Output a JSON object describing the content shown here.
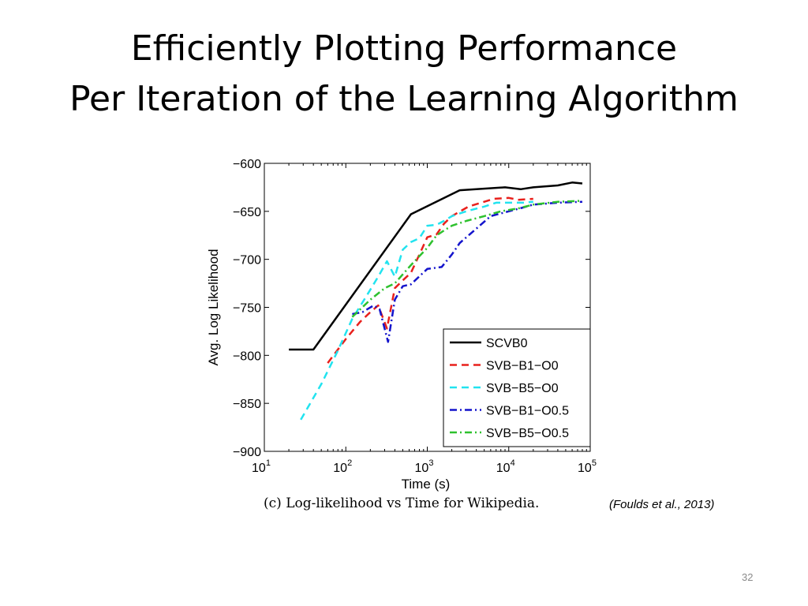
{
  "slide": {
    "title_line1": "Efficiently Plotting Performance",
    "title_line2": "Per Iteration of the Learning Algorithm",
    "caption": "(c) Log-likelihood vs Time for Wikipedia.",
    "citation": "(Foulds et al., 2013)",
    "slide_number": "32"
  },
  "chart_data": {
    "type": "line",
    "title": "",
    "xlabel": "Time (s)",
    "ylabel": "Avg. Log Likelihood",
    "xscale": "log",
    "xlim": [
      10,
      100000
    ],
    "ylim": [
      -900,
      -600
    ],
    "x_ticks": [
      {
        "base": "10",
        "exp": "1"
      },
      {
        "base": "10",
        "exp": "2"
      },
      {
        "base": "10",
        "exp": "3"
      },
      {
        "base": "10",
        "exp": "4"
      },
      {
        "base": "10",
        "exp": "5"
      }
    ],
    "y_ticks": [
      "−600",
      "−650",
      "−700",
      "−750",
      "−800",
      "−850",
      "−900"
    ],
    "grid": false,
    "legend_position": "bottom-right",
    "series": [
      {
        "name": "SCVB0",
        "color": "#000000",
        "dash": "solid",
        "points": [
          [
            20,
            -794
          ],
          [
            40,
            -794
          ],
          [
            630,
            -653
          ],
          [
            2500,
            -628
          ],
          [
            9000,
            -625
          ],
          [
            14000,
            -627
          ],
          [
            20000,
            -625
          ],
          [
            40000,
            -623
          ],
          [
            60000,
            -620
          ],
          [
            80000,
            -621
          ]
        ]
      },
      {
        "name": "SVB−B1−O0",
        "color": "#e8201c",
        "dash": "dashed",
        "points": [
          [
            60,
            -808
          ],
          [
            100,
            -783
          ],
          [
            150,
            -765
          ],
          [
            200,
            -755
          ],
          [
            250,
            -748
          ],
          [
            320,
            -772
          ],
          [
            400,
            -730
          ],
          [
            500,
            -722
          ],
          [
            630,
            -714
          ],
          [
            800,
            -695
          ],
          [
            1000,
            -677
          ],
          [
            1300,
            -674
          ],
          [
            1600,
            -663
          ],
          [
            2000,
            -655
          ],
          [
            3200,
            -645
          ],
          [
            5000,
            -640
          ],
          [
            6500,
            -637
          ],
          [
            10000,
            -636
          ],
          [
            13000,
            -638
          ],
          [
            20000,
            -637
          ]
        ]
      },
      {
        "name": "SVB−B5−O0",
        "color": "#22e3ef",
        "dash": "dashed",
        "points": [
          [
            28,
            -867
          ],
          [
            50,
            -830
          ],
          [
            80,
            -795
          ],
          [
            120,
            -762
          ],
          [
            180,
            -738
          ],
          [
            250,
            -718
          ],
          [
            320,
            -702
          ],
          [
            400,
            -718
          ],
          [
            500,
            -690
          ],
          [
            630,
            -682
          ],
          [
            800,
            -678
          ],
          [
            1000,
            -665
          ],
          [
            1300,
            -664
          ],
          [
            1600,
            -660
          ],
          [
            2000,
            -655
          ],
          [
            3000,
            -650
          ],
          [
            5000,
            -645
          ],
          [
            7000,
            -641
          ],
          [
            10000,
            -641
          ],
          [
            15000,
            -641
          ],
          [
            20000,
            -640
          ]
        ]
      },
      {
        "name": "SVB−B1−O0.5",
        "color": "#1414cc",
        "dash": "dashdot",
        "points": [
          [
            120,
            -757
          ],
          [
            160,
            -755
          ],
          [
            220,
            -748
          ],
          [
            260,
            -752
          ],
          [
            330,
            -786
          ],
          [
            400,
            -742
          ],
          [
            500,
            -728
          ],
          [
            630,
            -726
          ],
          [
            1000,
            -710
          ],
          [
            1500,
            -708
          ],
          [
            2000,
            -695
          ],
          [
            2500,
            -683
          ],
          [
            4000,
            -668
          ],
          [
            6000,
            -655
          ],
          [
            10000,
            -650
          ],
          [
            15000,
            -646
          ],
          [
            20000,
            -643
          ],
          [
            40000,
            -641
          ],
          [
            80000,
            -640
          ]
        ]
      },
      {
        "name": "SVB−B5−O0.5",
        "color": "#2ec12e",
        "dash": "dashdot",
        "points": [
          [
            120,
            -760
          ],
          [
            200,
            -742
          ],
          [
            300,
            -730
          ],
          [
            400,
            -725
          ],
          [
            630,
            -706
          ],
          [
            1000,
            -688
          ],
          [
            1300,
            -675
          ],
          [
            1600,
            -670
          ],
          [
            2000,
            -665
          ],
          [
            3000,
            -660
          ],
          [
            5000,
            -655
          ],
          [
            8000,
            -650
          ],
          [
            13000,
            -647
          ],
          [
            20000,
            -643
          ],
          [
            40000,
            -640
          ],
          [
            80000,
            -639
          ]
        ]
      }
    ]
  }
}
